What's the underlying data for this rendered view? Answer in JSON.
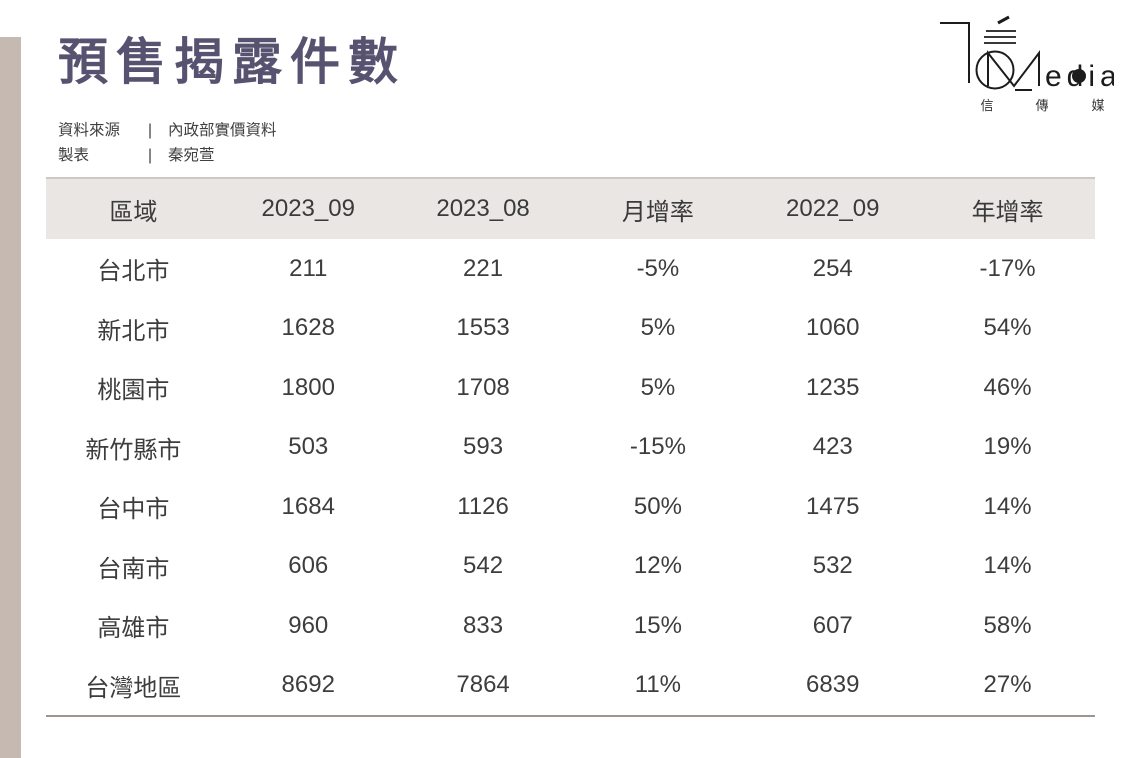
{
  "header": {
    "title": "預售揭露件數"
  },
  "meta": {
    "source_label": "資料來源",
    "pipe": "|",
    "source_value": "內政部實價資料",
    "author_label": "製表",
    "author_value": "秦宛萱"
  },
  "logo": {
    "latin": "edia",
    "chinese_1": "信",
    "chinese_2": "傳",
    "chinese_3": "媒"
  },
  "chart_data": {
    "type": "table",
    "title": "預售揭露件數",
    "source": "內政部實價資料",
    "author": "秦宛萱",
    "columns": [
      "區域",
      "2023_09",
      "2023_08",
      "月增率",
      "2022_09",
      "年增率"
    ],
    "rows": [
      [
        "台北市",
        "211",
        "221",
        "-5%",
        "254",
        "-17%"
      ],
      [
        "新北市",
        "1628",
        "1553",
        "5%",
        "1060",
        "54%"
      ],
      [
        "桃園市",
        "1800",
        "1708",
        "5%",
        "1235",
        "46%"
      ],
      [
        "新竹縣市",
        "503",
        "593",
        "-15%",
        "423",
        "19%"
      ],
      [
        "台中市",
        "1684",
        "1126",
        "50%",
        "1475",
        "14%"
      ],
      [
        "台南市",
        "606",
        "542",
        "12%",
        "532",
        "14%"
      ],
      [
        "高雄市",
        "960",
        "833",
        "15%",
        "607",
        "58%"
      ],
      [
        "台灣地區",
        "8692",
        "7864",
        "11%",
        "6839",
        "27%"
      ]
    ]
  },
  "colors": {
    "title": "#575270",
    "accent_strip": "#c5b9b1",
    "header_bg": "#e9e6e3",
    "header_top_border": "#cfc8c2",
    "table_bottom_border": "#9d968f",
    "text": "#3d3d3d",
    "logo": "#1c1c1c"
  }
}
